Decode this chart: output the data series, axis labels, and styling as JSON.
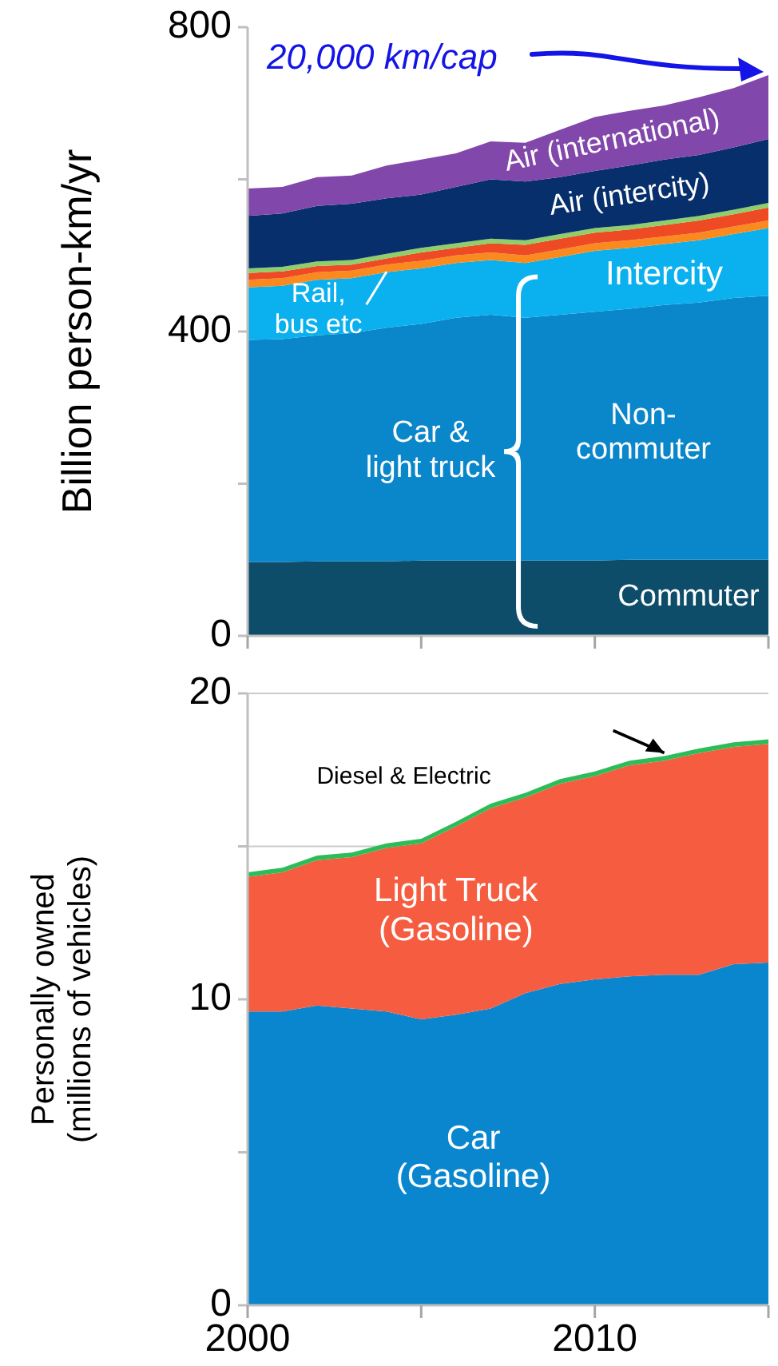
{
  "chart_data": [
    {
      "type": "area",
      "stacked": true,
      "ylabel": "Billion person-km/yr",
      "x": [
        2000,
        2001,
        2002,
        2003,
        2004,
        2005,
        2006,
        2007,
        2008,
        2009,
        2010,
        2011,
        2012,
        2013,
        2014,
        2015
      ],
      "xlim": [
        2000,
        2015
      ],
      "xticks": [
        {
          "value": 2000,
          "label": null
        },
        {
          "value": 2005,
          "label": null
        },
        {
          "value": 2010,
          "label": null
        },
        {
          "value": 2015,
          "label": null
        }
      ],
      "ylim": [
        0,
        800
      ],
      "yticks": [
        0,
        {
          "value": 200,
          "label": null
        },
        400,
        {
          "value": 600,
          "label": null
        },
        800
      ],
      "tick_labels": "y",
      "legend": false,
      "grid": false,
      "series": [
        {
          "name": "Commuter",
          "color": "#0d4d6a",
          "values": [
            97,
            97,
            98,
            98,
            98,
            99,
            99,
            99,
            99,
            99,
            99,
            100,
            100,
            100,
            100,
            100
          ]
        },
        {
          "name": "Non-\ncommuter",
          "color": "#0a86cb",
          "values": [
            292,
            293,
            297,
            300,
            307,
            311,
            319,
            323,
            319,
            323,
            327,
            330,
            335,
            338,
            344,
            347
          ]
        },
        {
          "name": "Intercity",
          "color": "#0ab1ee",
          "values": [
            69,
            70,
            73,
            72,
            73,
            73,
            72,
            72,
            72,
            76,
            80,
            80,
            80,
            82,
            84,
            89
          ]
        },
        {
          "name": "Rail,\nbus etc",
          "color": "#fb8a1e",
          "values": [
            10,
            10,
            10,
            10,
            10,
            10,
            10,
            10,
            10,
            10,
            10,
            10,
            10,
            10,
            10,
            10
          ]
        },
        {
          "color": "#ee4b25",
          "values": [
            9,
            9,
            8,
            8,
            8,
            11,
            10,
            12,
            14,
            14,
            14,
            14,
            15,
            16,
            16,
            17
          ]
        },
        {
          "color": "#8fce6a",
          "values": [
            6,
            6,
            6,
            6,
            6,
            6,
            6,
            6,
            6,
            6,
            6,
            6,
            6,
            6,
            6,
            6
          ]
        },
        {
          "name": "Air (intercity)",
          "color": "#062f6b",
          "values": [
            69,
            70,
            73,
            74,
            73,
            70,
            74,
            78,
            77,
            75,
            75,
            78,
            80,
            80,
            82,
            84
          ]
        },
        {
          "name": "Air (international)",
          "color": "#8247aa",
          "values": [
            36,
            35,
            38,
            37,
            43,
            46,
            44,
            50,
            51,
            62,
            71,
            72,
            71,
            76,
            78,
            84
          ]
        }
      ],
      "annotations": [
        "20,000 km/cap",
        "Car &\nlight truck"
      ]
    },
    {
      "type": "area",
      "stacked": true,
      "ylabel": "Personally owned\n(millions of vehicles)",
      "x": [
        2000,
        2001,
        2002,
        2003,
        2004,
        2005,
        2006,
        2007,
        2008,
        2009,
        2010,
        2011,
        2012,
        2013,
        2014,
        2015
      ],
      "xlim": [
        2000,
        2015
      ],
      "xticks": [
        2000,
        {
          "value": 2005,
          "label": null
        },
        2010,
        {
          "value": 2015,
          "label": null
        }
      ],
      "ylim": [
        0,
        20
      ],
      "yticks": [
        0,
        {
          "value": 5,
          "label": null
        },
        10,
        {
          "value": 15,
          "label": null
        },
        20
      ],
      "legend": false,
      "grid": "y",
      "series": [
        {
          "name": "Car\n(Gasoline)",
          "color": "#0a86cf",
          "values": [
            9.6,
            9.6,
            9.8,
            9.7,
            9.6,
            9.35,
            9.5,
            9.7,
            10.2,
            10.5,
            10.65,
            10.75,
            10.8,
            10.8,
            11.15,
            11.2
          ]
        },
        {
          "name": "Light Truck\n(Gasoline)",
          "color": "#f65c40",
          "values": [
            4.4,
            4.55,
            4.75,
            4.95,
            5.35,
            5.75,
            6.15,
            6.55,
            6.4,
            6.55,
            6.65,
            6.9,
            7.0,
            7.25,
            7.1,
            7.15
          ]
        },
        {
          "name": "Diesel & Electric",
          "color": "#2dbd58",
          "values": [
            0.15,
            0.15,
            0.15,
            0.15,
            0.15,
            0.15,
            0.15,
            0.15,
            0.15,
            0.15,
            0.15,
            0.15,
            0.15,
            0.15,
            0.15,
            0.15
          ]
        }
      ]
    }
  ]
}
